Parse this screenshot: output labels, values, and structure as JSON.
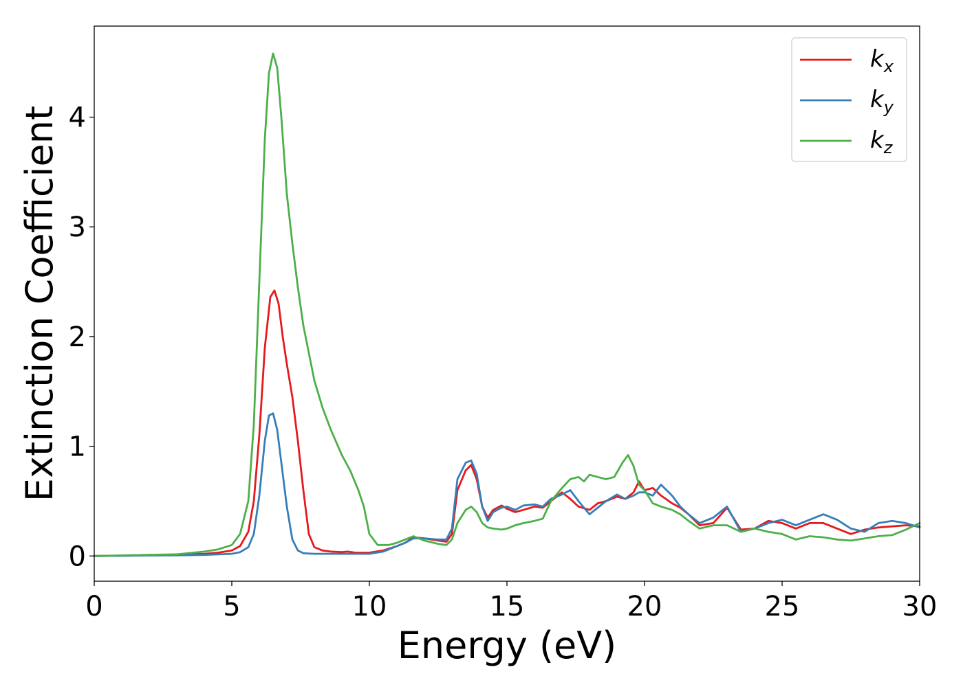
{
  "chart_data": {
    "type": "line",
    "xlabel": "Energy (eV)",
    "ylabel": "Extinction Coefficient",
    "xlim": [
      0,
      30
    ],
    "ylim": [
      -0.23,
      4.83
    ],
    "xticks": [
      0,
      5,
      10,
      15,
      20,
      25,
      30
    ],
    "yticks": [
      0,
      1,
      2,
      3,
      4
    ],
    "grid": false,
    "legend_position": "top-right",
    "series": [
      {
        "name": "k_x",
        "label_base": "k",
        "label_sub": "x",
        "color": "#e41a1c",
        "x": [
          0,
          1,
          2,
          3,
          4,
          4.5,
          5,
          5.3,
          5.6,
          5.8,
          6.0,
          6.2,
          6.4,
          6.55,
          6.7,
          6.85,
          7.0,
          7.2,
          7.4,
          7.6,
          7.8,
          8.0,
          8.3,
          8.6,
          9.0,
          9.2,
          9.5,
          10,
          10.5,
          11,
          11.3,
          11.6,
          12,
          12.5,
          12.8,
          13.0,
          13.2,
          13.5,
          13.7,
          13.9,
          14.1,
          14.3,
          14.5,
          14.8,
          15,
          15.3,
          15.6,
          16,
          16.3,
          16.6,
          17,
          17.3,
          17.6,
          18,
          18.3,
          18.6,
          19,
          19.3,
          19.6,
          19.8,
          20,
          20.3,
          20.6,
          21,
          21.3,
          21.6,
          22,
          22.5,
          23,
          23.5,
          24,
          24.5,
          25,
          25.5,
          26,
          26.5,
          27,
          27.5,
          28,
          28.5,
          29,
          29.5,
          30
        ],
        "y": [
          0,
          0.003,
          0.006,
          0.01,
          0.02,
          0.03,
          0.05,
          0.09,
          0.22,
          0.5,
          1.1,
          1.9,
          2.36,
          2.42,
          2.3,
          2.0,
          1.75,
          1.45,
          1.05,
          0.6,
          0.2,
          0.08,
          0.05,
          0.04,
          0.035,
          0.04,
          0.03,
          0.03,
          0.05,
          0.09,
          0.12,
          0.17,
          0.16,
          0.14,
          0.13,
          0.2,
          0.6,
          0.78,
          0.83,
          0.7,
          0.45,
          0.35,
          0.42,
          0.46,
          0.43,
          0.4,
          0.42,
          0.45,
          0.44,
          0.5,
          0.58,
          0.52,
          0.45,
          0.42,
          0.48,
          0.5,
          0.54,
          0.52,
          0.58,
          0.68,
          0.6,
          0.62,
          0.55,
          0.48,
          0.44,
          0.38,
          0.28,
          0.3,
          0.44,
          0.24,
          0.25,
          0.32,
          0.3,
          0.25,
          0.3,
          0.3,
          0.25,
          0.2,
          0.24,
          0.26,
          0.27,
          0.28,
          0.27
        ]
      },
      {
        "name": "k_y",
        "label_base": "k",
        "label_sub": "y",
        "color": "#377eb8",
        "x": [
          0,
          1,
          2,
          3,
          4,
          4.5,
          5,
          5.3,
          5.6,
          5.8,
          6.0,
          6.2,
          6.35,
          6.5,
          6.65,
          6.8,
          7.0,
          7.2,
          7.4,
          7.6,
          8.0,
          8.5,
          9,
          9.5,
          10,
          10.5,
          11,
          11.3,
          11.6,
          12,
          12.5,
          12.8,
          13.0,
          13.2,
          13.5,
          13.7,
          13.9,
          14.1,
          14.3,
          14.5,
          14.8,
          15,
          15.3,
          15.6,
          16,
          16.3,
          16.6,
          17,
          17.3,
          17.6,
          18,
          18.3,
          18.6,
          19,
          19.3,
          19.6,
          19.8,
          20,
          20.3,
          20.6,
          21,
          21.3,
          21.6,
          22,
          22.5,
          23,
          23.5,
          24,
          24.5,
          25,
          25.5,
          26,
          26.5,
          27,
          27.5,
          28,
          28.5,
          29,
          29.5,
          30
        ],
        "y": [
          0,
          0.002,
          0.004,
          0.006,
          0.01,
          0.015,
          0.02,
          0.035,
          0.08,
          0.2,
          0.55,
          1.05,
          1.28,
          1.3,
          1.15,
          0.85,
          0.45,
          0.15,
          0.05,
          0.025,
          0.02,
          0.02,
          0.02,
          0.02,
          0.02,
          0.04,
          0.09,
          0.12,
          0.16,
          0.16,
          0.15,
          0.15,
          0.25,
          0.7,
          0.85,
          0.87,
          0.75,
          0.45,
          0.32,
          0.4,
          0.44,
          0.45,
          0.42,
          0.46,
          0.47,
          0.45,
          0.52,
          0.56,
          0.6,
          0.5,
          0.38,
          0.44,
          0.5,
          0.56,
          0.52,
          0.55,
          0.58,
          0.58,
          0.55,
          0.65,
          0.55,
          0.45,
          0.38,
          0.3,
          0.35,
          0.45,
          0.22,
          0.25,
          0.3,
          0.33,
          0.28,
          0.33,
          0.38,
          0.33,
          0.25,
          0.22,
          0.3,
          0.32,
          0.3,
          0.26
        ]
      },
      {
        "name": "k_z",
        "label_base": "k",
        "label_sub": "z",
        "color": "#4daf4a",
        "x": [
          0,
          1,
          2,
          3,
          4,
          4.5,
          5,
          5.3,
          5.6,
          5.8,
          6.0,
          6.2,
          6.35,
          6.5,
          6.65,
          6.8,
          7.0,
          7.2,
          7.4,
          7.6,
          7.8,
          8.0,
          8.3,
          8.6,
          9.0,
          9.3,
          9.6,
          9.8,
          10.0,
          10.3,
          10.7,
          11,
          11.3,
          11.6,
          12,
          12.5,
          12.8,
          13.0,
          13.2,
          13.5,
          13.7,
          13.9,
          14.1,
          14.3,
          14.5,
          14.8,
          15,
          15.3,
          15.6,
          16,
          16.3,
          16.6,
          17,
          17.3,
          17.6,
          17.8,
          18,
          18.3,
          18.6,
          18.9,
          19.2,
          19.4,
          19.6,
          19.8,
          20,
          20.3,
          20.6,
          21,
          21.3,
          21.6,
          22,
          22.5,
          23,
          23.5,
          24,
          24.5,
          25,
          25.5,
          26,
          26.5,
          27,
          27.5,
          28,
          28.5,
          29,
          29.5,
          30
        ],
        "y": [
          0,
          0.005,
          0.01,
          0.015,
          0.04,
          0.06,
          0.1,
          0.2,
          0.5,
          1.2,
          2.5,
          3.8,
          4.4,
          4.58,
          4.45,
          4.0,
          3.3,
          2.85,
          2.45,
          2.1,
          1.85,
          1.6,
          1.35,
          1.15,
          0.92,
          0.78,
          0.6,
          0.45,
          0.2,
          0.1,
          0.1,
          0.12,
          0.15,
          0.18,
          0.14,
          0.11,
          0.1,
          0.15,
          0.3,
          0.42,
          0.45,
          0.4,
          0.3,
          0.26,
          0.25,
          0.24,
          0.25,
          0.28,
          0.3,
          0.32,
          0.34,
          0.5,
          0.62,
          0.7,
          0.72,
          0.68,
          0.74,
          0.72,
          0.7,
          0.72,
          0.85,
          0.92,
          0.82,
          0.65,
          0.6,
          0.48,
          0.45,
          0.42,
          0.38,
          0.32,
          0.25,
          0.28,
          0.28,
          0.22,
          0.25,
          0.22,
          0.2,
          0.15,
          0.18,
          0.17,
          0.15,
          0.14,
          0.16,
          0.18,
          0.19,
          0.24,
          0.3
        ]
      }
    ]
  }
}
